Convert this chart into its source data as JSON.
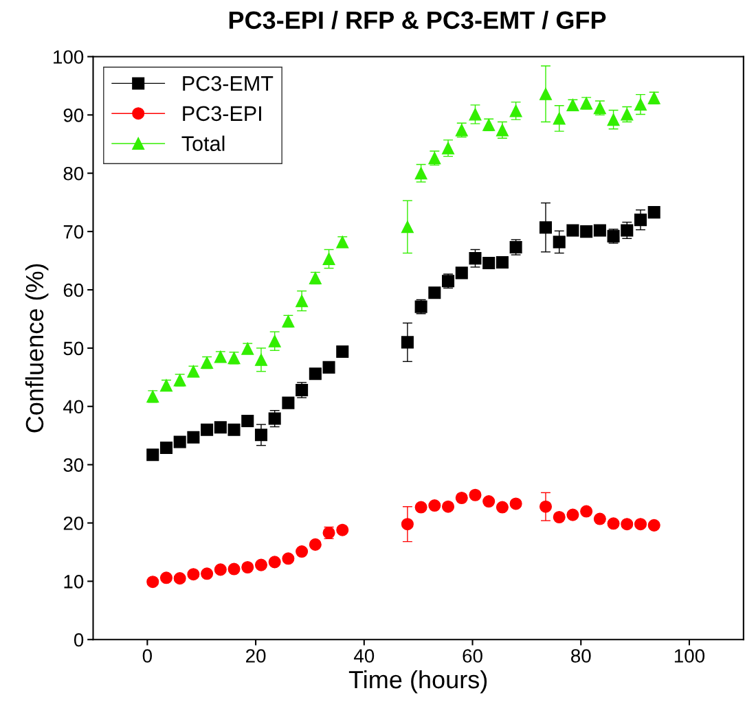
{
  "chart_data": {
    "type": "scatter",
    "title": "PC3-EPI / RFP & PC3-EMT / GFP",
    "xlabel": "Time (hours)",
    "ylabel": "Confluence (%)",
    "x": [
      1,
      3.5,
      6,
      8.5,
      11,
      13.5,
      16,
      18.5,
      21,
      23.5,
      26,
      28.5,
      31,
      33.5,
      36,
      48,
      50.5,
      53,
      55.5,
      58,
      60.5,
      63,
      65.5,
      68,
      73.5,
      76,
      78.5,
      81,
      83.5,
      86,
      88.5,
      91,
      93.5
    ],
    "series": [
      {
        "name": "PC3-EMT",
        "color": "#000000",
        "marker": "square",
        "values": [
          31.7,
          32.9,
          33.9,
          34.7,
          36.0,
          36.4,
          36.0,
          37.5,
          35.1,
          37.9,
          40.6,
          42.8,
          45.6,
          46.7,
          49.4,
          51.0,
          57.1,
          59.5,
          61.5,
          62.9,
          65.4,
          64.6,
          64.7,
          67.3,
          70.7,
          68.2,
          70.2,
          70.0,
          70.2,
          69.2,
          70.2,
          72.0,
          73.3
        ],
        "errors": [
          0.6,
          0.6,
          0.6,
          0.6,
          0.7,
          0.6,
          0.6,
          0.6,
          1.8,
          1.4,
          0.6,
          1.3,
          0.7,
          0.6,
          0.6,
          3.3,
          1.2,
          0.6,
          1.2,
          0.9,
          1.5,
          0.6,
          0.6,
          1.3,
          4.2,
          1.9,
          0.6,
          0.6,
          0.6,
          1.2,
          1.4,
          1.7,
          0.6
        ]
      },
      {
        "name": "PC3-EPI",
        "color": "#ff0000",
        "marker": "circle",
        "values": [
          9.9,
          10.6,
          10.5,
          11.2,
          11.3,
          12.0,
          12.1,
          12.4,
          12.8,
          13.3,
          13.9,
          15.1,
          16.3,
          18.3,
          18.8,
          19.8,
          22.7,
          23.0,
          22.8,
          24.3,
          24.8,
          23.7,
          22.7,
          23.3,
          22.8,
          21.0,
          21.4,
          22.0,
          20.7,
          19.9,
          19.8,
          19.8,
          19.6
        ],
        "errors": [
          0.4,
          0.4,
          0.4,
          0.4,
          0.4,
          0.4,
          0.4,
          0.4,
          0.4,
          0.4,
          0.4,
          0.5,
          0.5,
          1.0,
          0.5,
          3.0,
          0.5,
          0.5,
          0.5,
          0.5,
          0.5,
          0.5,
          0.5,
          0.5,
          2.4,
          0.5,
          0.5,
          0.5,
          0.5,
          0.5,
          0.5,
          0.5,
          0.5
        ]
      },
      {
        "name": "Total",
        "color": "#33ee00",
        "marker": "triangle",
        "values": [
          41.7,
          43.6,
          44.5,
          46.0,
          47.5,
          48.5,
          48.3,
          49.9,
          48.0,
          51.2,
          54.6,
          58.1,
          62.0,
          65.3,
          68.2,
          70.8,
          80.0,
          82.6,
          84.3,
          87.4,
          90.1,
          88.3,
          87.4,
          90.7,
          93.6,
          89.4,
          91.7,
          92.0,
          91.2,
          89.2,
          90.1,
          91.8,
          92.9
        ],
        "errors": [
          1.0,
          0.9,
          1.0,
          0.9,
          1.0,
          0.9,
          1.0,
          0.9,
          2.0,
          1.6,
          1.0,
          1.7,
          1.0,
          1.6,
          0.9,
          4.5,
          1.5,
          1.2,
          1.4,
          1.2,
          1.6,
          1.0,
          1.4,
          1.5,
          4.8,
          2.2,
          0.9,
          1.0,
          1.2,
          1.6,
          1.3,
          1.7,
          1.0
        ]
      }
    ],
    "xlim": [
      -10,
      110
    ],
    "xticks": [
      0,
      20,
      40,
      60,
      80,
      100
    ],
    "ylim": [
      0,
      100
    ],
    "yticks": [
      0,
      10,
      20,
      30,
      40,
      50,
      60,
      70,
      80,
      90,
      100
    ],
    "grid": false,
    "legend": "top left"
  }
}
